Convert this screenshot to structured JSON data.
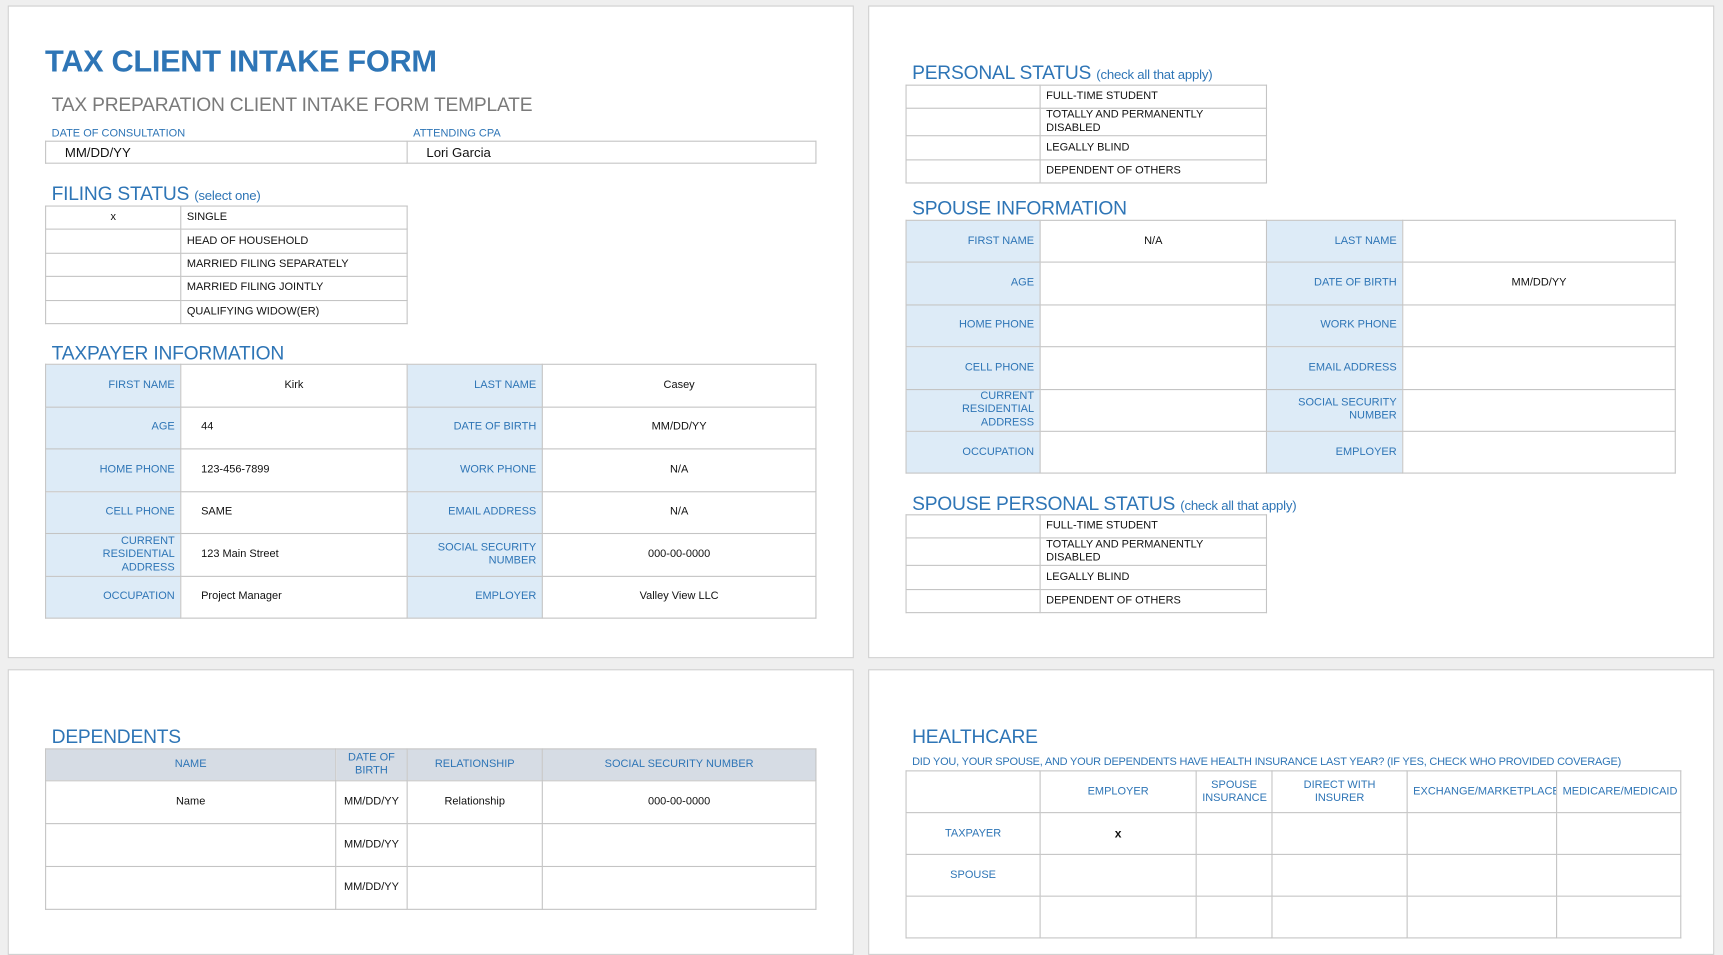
{
  "header": {
    "title": "TAX CLIENT INTAKE FORM",
    "subtitle": "TAX PREPARATION CLIENT INTAKE FORM TEMPLATE",
    "date_label": "DATE OF CONSULTATION",
    "cpa_label": "ATTENDING CPA",
    "date_value": "MM/DD/YY",
    "cpa_value": "Lori Garcia"
  },
  "filing_status": {
    "heading": "FILING STATUS",
    "note": "(select one)",
    "rows": [
      {
        "mark": "x",
        "label": "SINGLE"
      },
      {
        "mark": "",
        "label": "HEAD OF HOUSEHOLD"
      },
      {
        "mark": "",
        "label": "MARRIED FILING SEPARATELY"
      },
      {
        "mark": "",
        "label": "MARRIED FILING JOINTLY"
      },
      {
        "mark": "",
        "label": "QUALIFYING WIDOW(ER)"
      }
    ]
  },
  "taxpayer": {
    "heading": "TAXPAYER INFORMATION",
    "rows": [
      {
        "l1": "FIRST NAME",
        "v1": "Kirk",
        "l2": "LAST NAME",
        "v2": "Casey"
      },
      {
        "l1": "AGE",
        "v1": "44",
        "l2": "DATE OF BIRTH",
        "v2": "MM/DD/YY"
      },
      {
        "l1": "HOME PHONE",
        "v1": "123-456-7899",
        "l2": "WORK PHONE",
        "v2": "N/A"
      },
      {
        "l1": "CELL PHONE",
        "v1": "SAME",
        "l2": "EMAIL ADDRESS",
        "v2": "N/A"
      },
      {
        "l1": "CURRENT RESIDENTIAL ADDRESS",
        "v1": "123 Main Street",
        "l2": "SOCIAL SECURITY NUMBER",
        "v2": "000-00-0000"
      },
      {
        "l1": "OCCUPATION",
        "v1": "Project Manager",
        "l2": "EMPLOYER",
        "v2": "Valley View LLC"
      }
    ]
  },
  "personal_status": {
    "heading": "PERSONAL STATUS",
    "note": "(check all that apply)",
    "rows": [
      {
        "mark": "",
        "label": "FULL-TIME STUDENT"
      },
      {
        "mark": "",
        "label": "TOTALLY AND PERMANENTLY DISABLED"
      },
      {
        "mark": "",
        "label": "LEGALLY BLIND"
      },
      {
        "mark": "",
        "label": "DEPENDENT OF OTHERS"
      }
    ]
  },
  "spouse": {
    "heading": "SPOUSE INFORMATION",
    "rows": [
      {
        "l1": "FIRST NAME",
        "v1": "N/A",
        "l2": "LAST NAME",
        "v2": ""
      },
      {
        "l1": "AGE",
        "v1": "",
        "l2": "DATE OF BIRTH",
        "v2": "MM/DD/YY"
      },
      {
        "l1": "HOME PHONE",
        "v1": "",
        "l2": "WORK PHONE",
        "v2": ""
      },
      {
        "l1": "CELL PHONE",
        "v1": "",
        "l2": "EMAIL ADDRESS",
        "v2": ""
      },
      {
        "l1": "CURRENT RESIDENTIAL ADDRESS",
        "v1": "",
        "l2": "SOCIAL SECURITY NUMBER",
        "v2": ""
      },
      {
        "l1": "OCCUPATION",
        "v1": "",
        "l2": "EMPLOYER",
        "v2": ""
      }
    ]
  },
  "spouse_status": {
    "heading": "SPOUSE PERSONAL STATUS",
    "note": "(check all that apply)",
    "rows": [
      {
        "mark": "",
        "label": "FULL-TIME STUDENT"
      },
      {
        "mark": "",
        "label": "TOTALLY AND PERMANENTLY DISABLED"
      },
      {
        "mark": "",
        "label": "LEGALLY BLIND"
      },
      {
        "mark": "",
        "label": "DEPENDENT OF OTHERS"
      }
    ]
  },
  "dependents": {
    "heading": "DEPENDENTS",
    "columns": [
      "NAME",
      "DATE OF BIRTH",
      "RELATIONSHIP",
      "SOCIAL SECURITY NUMBER"
    ],
    "rows": [
      [
        "Name",
        "MM/DD/YY",
        "Relationship",
        "000-00-0000"
      ],
      [
        "",
        "MM/DD/YY",
        "",
        ""
      ],
      [
        "",
        "MM/DD/YY",
        "",
        ""
      ]
    ]
  },
  "healthcare": {
    "heading": "HEALTHCARE",
    "question": "DID YOU, YOUR SPOUSE, AND YOUR DEPENDENTS HAVE HEALTH INSURANCE LAST YEAR? (IF YES, CHECK WHO PROVIDED COVERAGE)",
    "columns": [
      "",
      "EMPLOYER",
      "SPOUSE INSURANCE",
      "DIRECT WITH INSURER",
      "EXCHANGE/MARKETPLACE",
      "MEDICARE/MEDICAID"
    ],
    "rows": [
      {
        "label": "TAXPAYER",
        "cells": [
          "x",
          "",
          "",
          "",
          ""
        ]
      },
      {
        "label": "SPOUSE",
        "cells": [
          "",
          "",
          "",
          "",
          ""
        ]
      },
      {
        "label": "",
        "cells": [
          "",
          "",
          "",
          "",
          ""
        ]
      }
    ]
  },
  "colors": {
    "accent": "#2e75b6",
    "label_bg": "#ddebf7",
    "header_bg": "#d6dce4"
  }
}
